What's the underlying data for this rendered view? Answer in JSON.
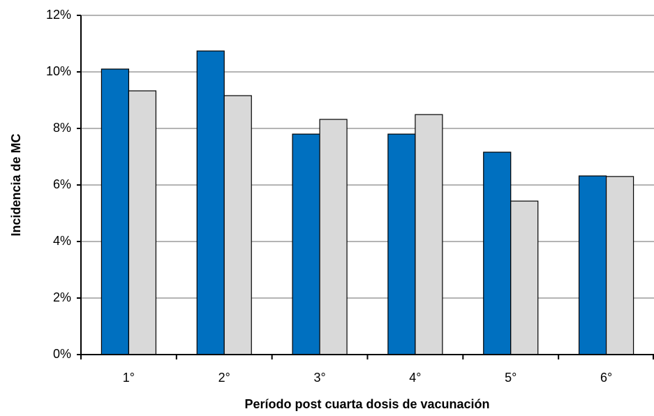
{
  "chart_data": {
    "type": "bar",
    "xlabel": "Período post cuarta dosis de vacunación",
    "ylabel": "Incidencia de MC",
    "categories": [
      "1°",
      "2°",
      "3°",
      "4°",
      "5°",
      "6°"
    ],
    "series": [
      {
        "color": "#0070c0",
        "values": [
          10.1,
          10.74,
          7.8,
          7.8,
          7.16,
          6.32
        ]
      },
      {
        "color": "#d9d9d9",
        "values": [
          9.33,
          9.16,
          8.32,
          8.49,
          5.43,
          6.3
        ]
      }
    ],
    "ylim": [
      0,
      12
    ],
    "yticks": [
      {
        "value": 0,
        "label": "0%"
      },
      {
        "value": 2,
        "label": "2%"
      },
      {
        "value": 4,
        "label": "4%"
      },
      {
        "value": 6,
        "label": "6%"
      },
      {
        "value": 8,
        "label": "8%"
      },
      {
        "value": 10,
        "label": "10%"
      },
      {
        "value": 12,
        "label": "12%"
      }
    ],
    "grid": true
  }
}
